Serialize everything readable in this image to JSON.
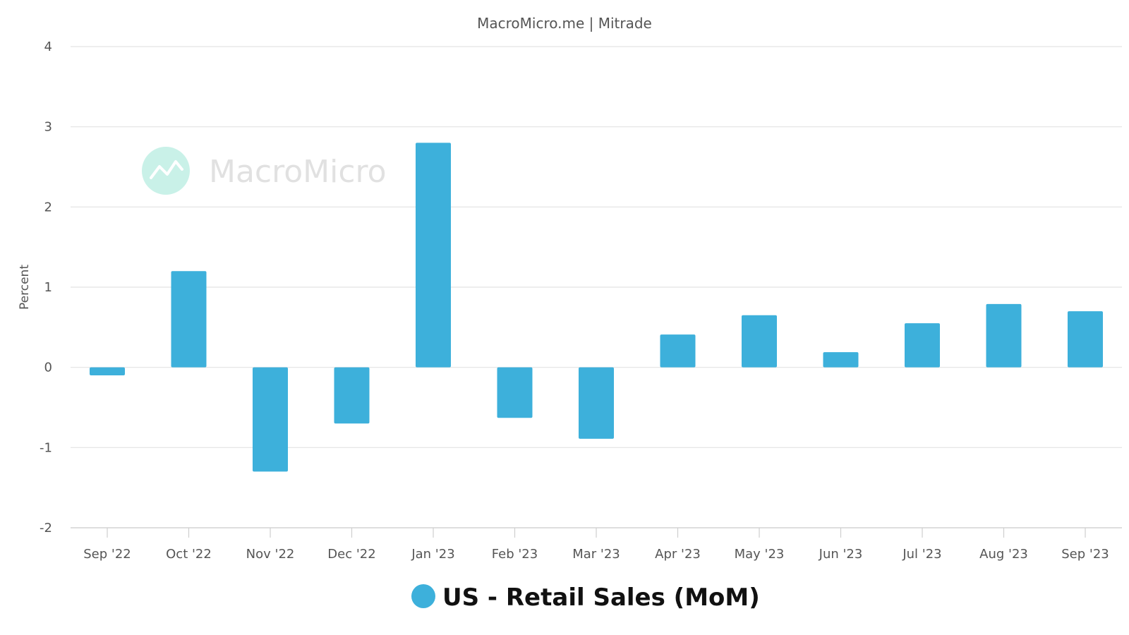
{
  "chart_data": {
    "type": "bar",
    "title": "",
    "subtitle": "MacroMicro.me | Mitrade",
    "watermark": "MacroMicro",
    "xlabel": "",
    "ylabel": "Percent",
    "ylim": [
      -2,
      4
    ],
    "yticks": [
      "4",
      "3",
      "2",
      "1",
      "0",
      "-1",
      "-2"
    ],
    "grid": true,
    "legend_position": "bottom-center",
    "categories": [
      "Sep '22",
      "Oct '22",
      "Nov '22",
      "Dec '22",
      "Jan '23",
      "Feb '23",
      "Mar '23",
      "Apr '23",
      "May '23",
      "Jun '23",
      "Jul '23",
      "Aug '23",
      "Sep '23"
    ],
    "series": [
      {
        "name": "US - Retail Sales (MoM)",
        "color": "#3db0db",
        "values": [
          -0.1,
          1.2,
          -1.3,
          -0.7,
          2.8,
          -0.63,
          -0.89,
          0.41,
          0.65,
          0.19,
          0.55,
          0.79,
          0.7
        ]
      }
    ]
  }
}
